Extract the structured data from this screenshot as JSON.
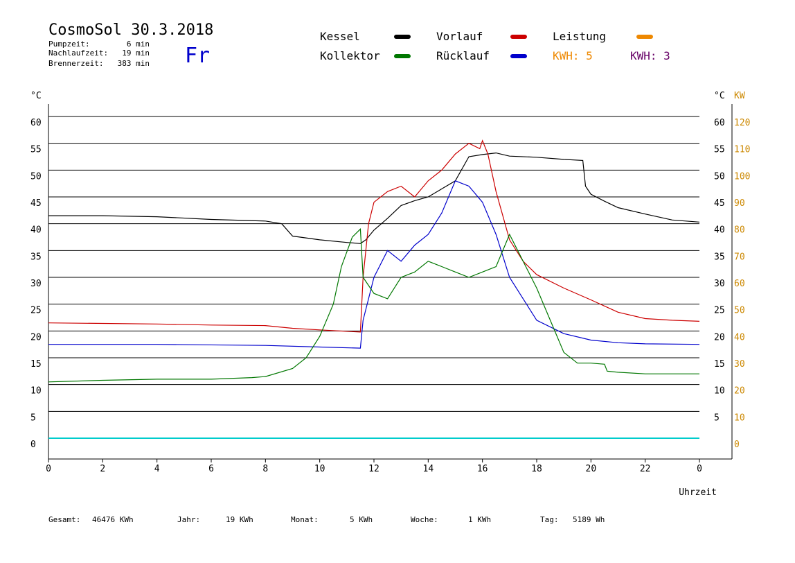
{
  "header": {
    "title": "CosmoSol 30.3.2018",
    "pump_label": "Pumpzeit:",
    "pump_value": "6 min",
    "after_label": "Nachlaufzeit:",
    "after_value": "19 min",
    "burner_label": "Brennerzeit:",
    "burner_value": "383 min",
    "weekday": "Fr"
  },
  "legend": {
    "kessel": "Kessel",
    "vorlauf": "Vorlauf",
    "leistung": "Leistung",
    "kollektor": "Kollektor",
    "ruecklauf": "Rücklauf",
    "kwh1": "KWH: 5",
    "kwh2": "KWH: 3"
  },
  "colors": {
    "kessel": "#000000",
    "vorlauf": "#cc0000",
    "ruecklauf": "#0000cc",
    "kollektor": "#007700",
    "leistung": "#ee8800",
    "kwh2": "#660066",
    "pump": "#00cccc",
    "accent": "#cc8800",
    "weekday": "#0000cc",
    "grid": "#000000"
  },
  "footer": {
    "gesamt_label": "Gesamt:",
    "gesamt_value": "46476 KWh",
    "jahr_label": "Jahr:",
    "jahr_value": "19 KWh",
    "monat_label": "Monat:",
    "monat_value": "5 KWh",
    "woche_label": "Woche:",
    "woche_value": "1 KWh",
    "tag_label": "Tag:",
    "tag_value": "5189 Wh"
  },
  "chart_data": {
    "type": "line",
    "xlabel": "Uhrzeit",
    "ylabel_left": "°C",
    "ylabel_right": "°C",
    "ylabel_power": "KW",
    "xlim": [
      0,
      24
    ],
    "ylim": [
      0,
      60
    ],
    "y2lim": [
      0,
      120
    ],
    "x_ticks": [
      "0",
      "2",
      "4",
      "6",
      "8",
      "10",
      "12",
      "14",
      "16",
      "18",
      "20",
      "22",
      "0"
    ],
    "y_ticks": [
      "0",
      "5",
      "10",
      "15",
      "20",
      "25",
      "30",
      "35",
      "40",
      "45",
      "50",
      "55",
      "60"
    ],
    "y_right_ticks": [
      "",
      "5",
      "10",
      "15",
      "20",
      "25",
      "30",
      "35",
      "40",
      "45",
      "50",
      "55",
      "60"
    ],
    "y2_ticks": [
      "0",
      "10",
      "20",
      "30",
      "40",
      "50",
      "60",
      "70",
      "80",
      "90",
      "100",
      "110",
      "120"
    ],
    "grid": "horizontal",
    "series": [
      {
        "name": "Kessel",
        "key": "kessel",
        "x": [
          0,
          2,
          4,
          6,
          8,
          8.6,
          9,
          10,
          11,
          11.5,
          11.7,
          12,
          12.5,
          13,
          13.5,
          14,
          14.5,
          15,
          15.5,
          16,
          16.5,
          17,
          18,
          19,
          19.7,
          19.8,
          20,
          20.5,
          21,
          22,
          23,
          24
        ],
        "y": [
          41.5,
          41.5,
          41.3,
          40.8,
          40.5,
          40,
          37.7,
          37,
          36.5,
          36.3,
          37,
          38.8,
          41,
          43.4,
          44.3,
          45,
          46.5,
          48,
          52.5,
          52.9,
          53.2,
          52.6,
          52.4,
          52,
          51.8,
          47,
          45.5,
          44.2,
          43,
          41.8,
          40.7,
          40.3
        ]
      },
      {
        "name": "Vorlauf",
        "key": "vorlauf",
        "x": [
          0,
          4,
          6,
          8,
          9,
          10,
          11.5,
          11.6,
          11.8,
          12,
          12.5,
          13,
          13.5,
          14,
          14.5,
          15,
          15.5,
          15.9,
          16,
          16.2,
          16.5,
          17,
          17.5,
          18,
          19,
          20,
          21,
          22,
          23,
          24
        ],
        "y": [
          21.5,
          21.3,
          21.1,
          21,
          20.5,
          20.2,
          19.8,
          30,
          40,
          44,
          46,
          47,
          45,
          48,
          50,
          53,
          55,
          54,
          55.5,
          53,
          46,
          37,
          33,
          30.5,
          28,
          25.8,
          23.5,
          22.3,
          22,
          21.8
        ]
      },
      {
        "name": "Rücklauf",
        "key": "ruecklauf",
        "x": [
          0,
          4,
          8,
          10,
          11.5,
          11.6,
          11.8,
          12,
          12.5,
          13,
          13.5,
          14,
          14.5,
          15,
          15.5,
          16,
          16.5,
          17,
          17.5,
          18,
          19,
          20,
          21,
          22,
          24
        ],
        "y": [
          17.5,
          17.5,
          17.3,
          17,
          16.8,
          22,
          26,
          30,
          35,
          33,
          36,
          38,
          42,
          48,
          47,
          44,
          38,
          30,
          26,
          22,
          19.5,
          18.3,
          17.8,
          17.6,
          17.5
        ]
      },
      {
        "name": "Kollektor",
        "key": "kollektor",
        "x": [
          0,
          2,
          4,
          6,
          7.5,
          8,
          9,
          9.5,
          10,
          10.5,
          10.8,
          11.2,
          11.5,
          11.6,
          12,
          12.5,
          13,
          13.5,
          14,
          14.5,
          15,
          15.5,
          16,
          16.5,
          17,
          17.5,
          18,
          18.5,
          19,
          19.5,
          20,
          20.5,
          20.6,
          21,
          22,
          23,
          24
        ],
        "y": [
          10.5,
          10.8,
          11,
          11,
          11.3,
          11.5,
          13,
          15,
          19,
          25,
          32,
          37.5,
          39,
          30,
          27,
          26,
          30,
          31,
          33,
          32,
          31,
          30,
          31,
          32,
          38,
          33,
          28,
          22,
          16,
          14,
          14,
          13.8,
          12.5,
          12.3,
          12,
          12,
          12
        ]
      }
    ],
    "pump_axis_level": 0,
    "annotations": []
  }
}
